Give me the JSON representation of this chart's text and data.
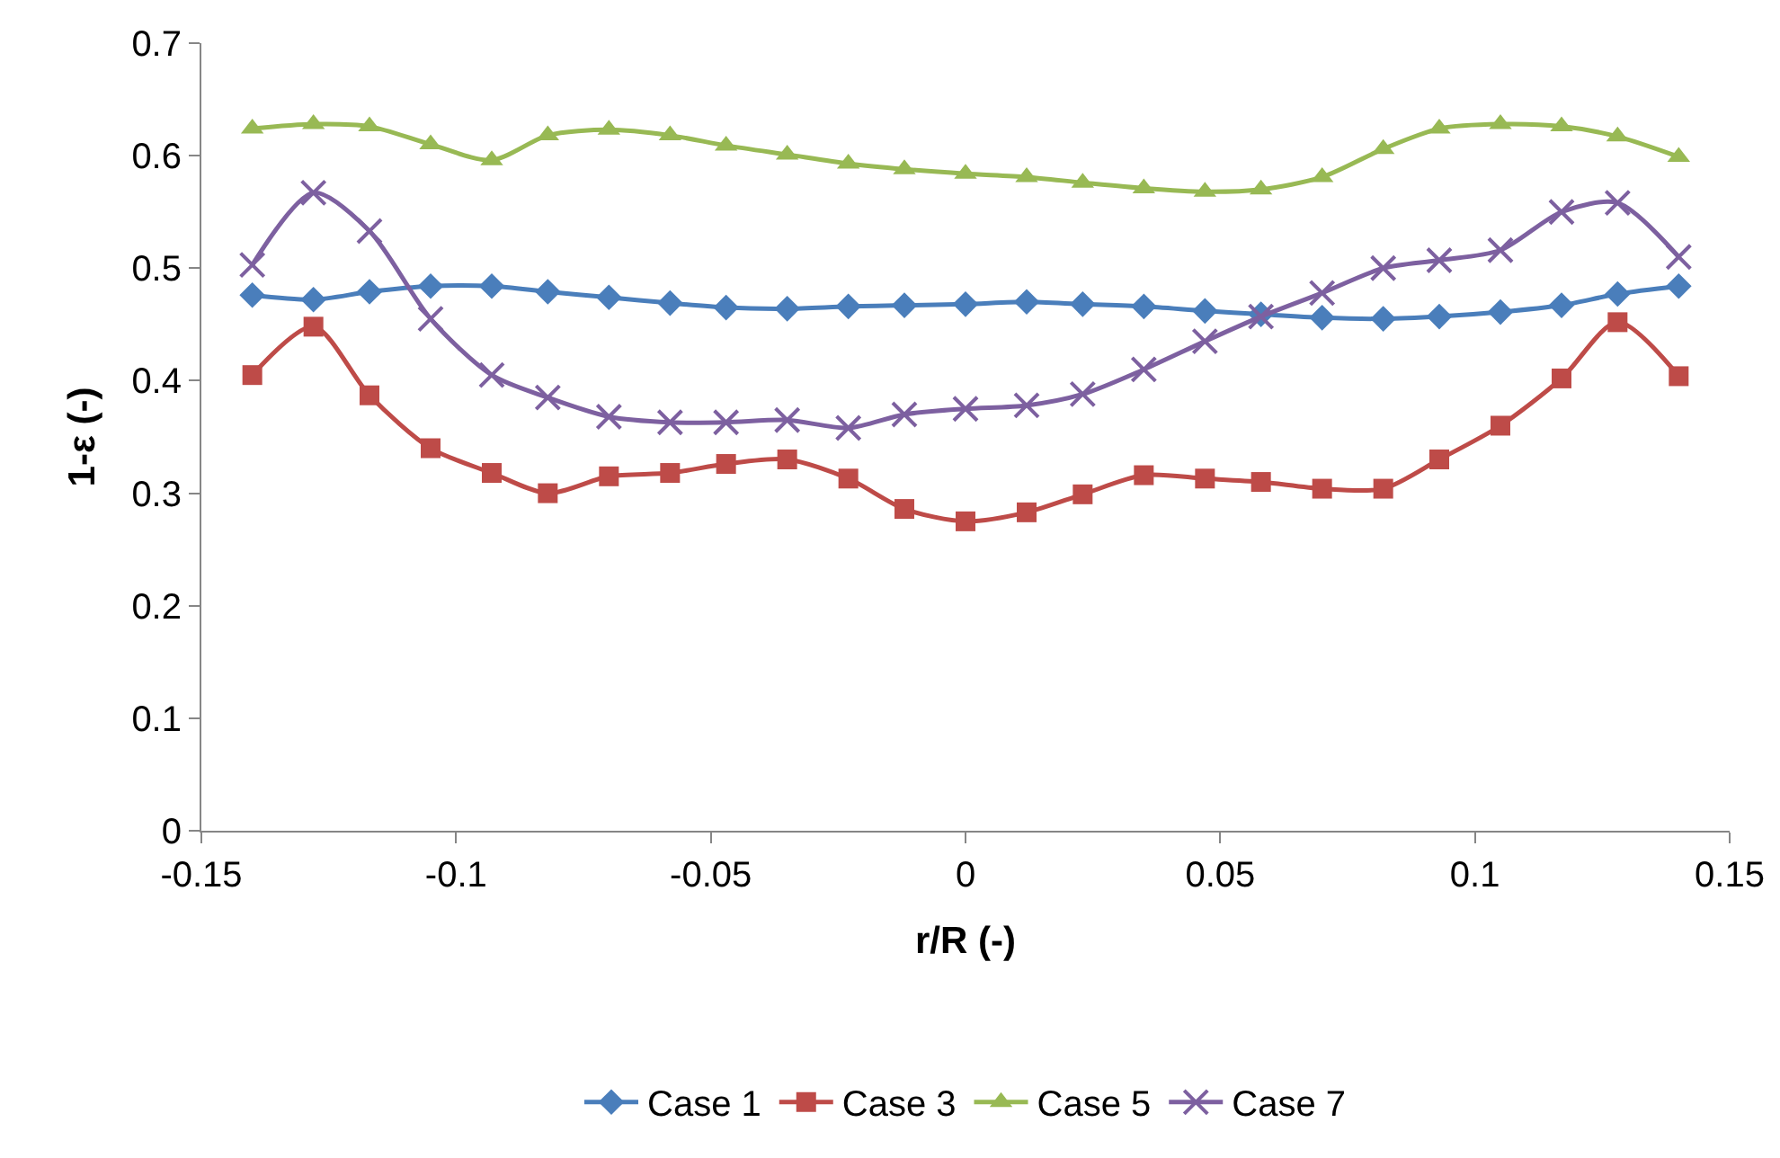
{
  "chart_data": {
    "type": "line",
    "xlabel": "r/R (-)",
    "ylabel": "1-ε (-)",
    "x": [
      -0.14,
      -0.128,
      -0.117,
      -0.105,
      -0.093,
      -0.082,
      -0.07,
      -0.058,
      -0.047,
      -0.035,
      -0.023,
      -0.012,
      0,
      0.012,
      0.023,
      0.035,
      0.047,
      0.058,
      0.07,
      0.082,
      0.093,
      0.105,
      0.117,
      0.128,
      0.14
    ],
    "series": [
      {
        "name": "Case 1",
        "color": "#4a7ebb",
        "marker": "diamond",
        "values": [
          0.476,
          0.472,
          0.479,
          0.484,
          0.484,
          0.479,
          0.474,
          0.469,
          0.465,
          0.464,
          0.466,
          0.467,
          0.468,
          0.47,
          0.468,
          0.466,
          0.462,
          0.459,
          0.456,
          0.455,
          0.457,
          0.461,
          0.467,
          0.477,
          0.484
        ]
      },
      {
        "name": "Case 3",
        "color": "#be4b48",
        "marker": "square",
        "values": [
          0.405,
          0.448,
          0.387,
          0.34,
          0.318,
          0.3,
          0.315,
          0.318,
          0.326,
          0.33,
          0.313,
          0.286,
          0.275,
          0.283,
          0.299,
          0.316,
          0.313,
          0.31,
          0.304,
          0.304,
          0.33,
          0.36,
          0.402,
          0.452,
          0.404
        ]
      },
      {
        "name": "Case 5",
        "color": "#98b954",
        "marker": "triangle",
        "values": [
          0.624,
          0.628,
          0.626,
          0.61,
          0.596,
          0.618,
          0.623,
          0.618,
          0.609,
          0.601,
          0.593,
          0.588,
          0.584,
          0.581,
          0.576,
          0.571,
          0.568,
          0.57,
          0.581,
          0.606,
          0.624,
          0.628,
          0.626,
          0.617,
          0.599
        ]
      },
      {
        "name": "Case 7",
        "color": "#7d60a0",
        "marker": "cross",
        "values": [
          0.503,
          0.567,
          0.533,
          0.455,
          0.405,
          0.385,
          0.368,
          0.363,
          0.363,
          0.365,
          0.358,
          0.37,
          0.375,
          0.378,
          0.388,
          0.41,
          0.435,
          0.457,
          0.478,
          0.5,
          0.507,
          0.516,
          0.55,
          0.558,
          0.51
        ]
      }
    ],
    "xlim": [
      -0.15,
      0.15
    ],
    "xticks": [
      -0.15,
      -0.1,
      -0.05,
      0,
      0.05,
      0.1,
      0.15
    ],
    "ylim": [
      0,
      0.7
    ],
    "yticks": [
      0,
      0.1,
      0.2,
      0.3,
      0.4,
      0.5,
      0.6,
      0.7
    ],
    "grid": false,
    "legend": "bottom",
    "line_style": "solid"
  }
}
